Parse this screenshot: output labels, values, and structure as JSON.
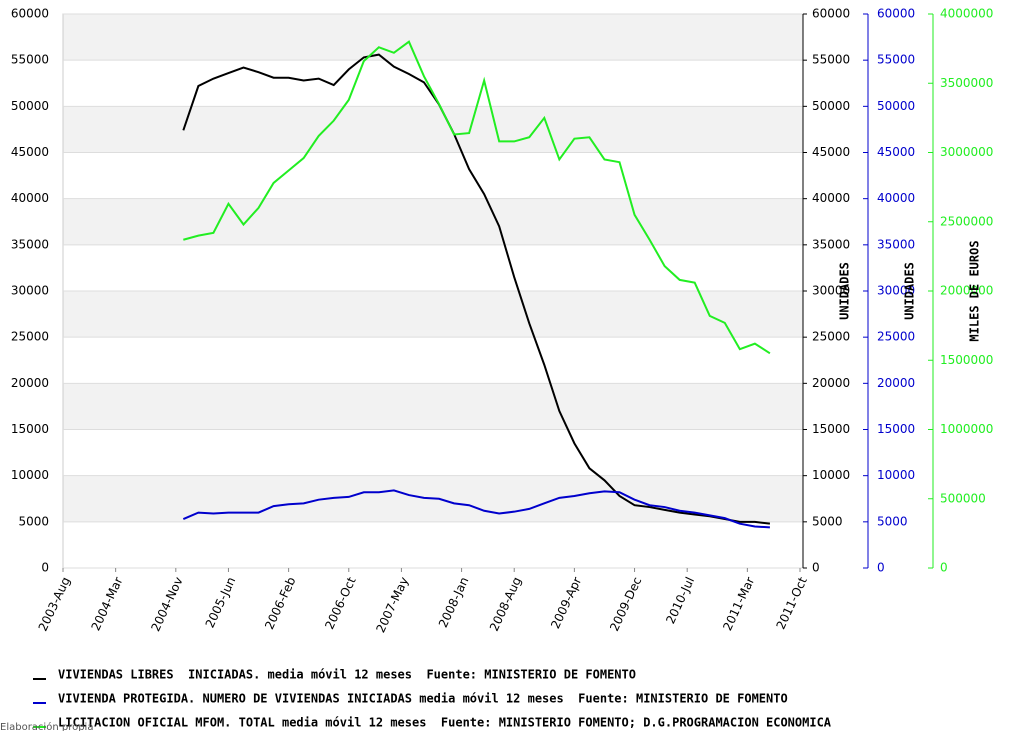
{
  "chart_data": {
    "type": "line",
    "x": [
      "2004-Dec",
      "2005-Feb",
      "2005-Apr",
      "2005-Jun",
      "2005-Aug",
      "2005-Oct",
      "2005-Dec",
      "2006-Feb",
      "2006-Apr",
      "2006-Jun",
      "2006-Aug",
      "2006-Oct",
      "2006-Dec",
      "2007-Feb",
      "2007-Apr",
      "2007-Jun",
      "2007-Aug",
      "2007-Oct",
      "2007-Dec",
      "2008-Feb",
      "2008-Apr",
      "2008-Jun",
      "2008-Aug",
      "2008-Oct",
      "2008-Dec",
      "2009-Feb",
      "2009-Apr",
      "2009-Jun",
      "2009-Aug",
      "2009-Oct",
      "2009-Dec",
      "2010-Feb",
      "2010-Apr",
      "2010-Jun",
      "2010-Aug",
      "2010-Oct",
      "2010-Dec",
      "2011-Feb",
      "2011-Apr",
      "2011-Jun"
    ],
    "xlim": [
      "2003-Aug",
      "2011-Oct"
    ],
    "xticks": [
      "2003-Aug",
      "2004-Mar",
      "2004-Nov",
      "2005-Jun",
      "2006-Feb",
      "2006-Oct",
      "2007-May",
      "2008-Jan",
      "2008-Aug",
      "2009-Apr",
      "2009-Dec",
      "2010-Jul",
      "2011-Mar",
      "2011-Oct"
    ],
    "ylim": [
      0,
      60000
    ],
    "yticks": [
      0,
      5000,
      10000,
      15000,
      20000,
      25000,
      30000,
      35000,
      40000,
      45000,
      50000,
      55000,
      60000
    ],
    "y_label": "UNIDADES",
    "y2lim": [
      0,
      60000
    ],
    "y2ticks": [
      0,
      5000,
      10000,
      15000,
      20000,
      25000,
      30000,
      35000,
      40000,
      45000,
      50000,
      55000,
      60000
    ],
    "y2_label": "UNIDADES",
    "y3lim": [
      0,
      4000000
    ],
    "y3ticks": [
      0,
      500000,
      1000000,
      1500000,
      2000000,
      2500000,
      3000000,
      3500000,
      4000000
    ],
    "y3_label": "MILES DE EUROS",
    "grid": true,
    "series": [
      {
        "name": "VIVIENDAS LIBRES  INICIADAS. media móvil 12 meses  Fuente: MINISTERIO DE FOMENTO",
        "color": "#000000",
        "axis": "y",
        "values": [
          47400,
          52200,
          53000,
          53600,
          54200,
          53700,
          53100,
          53100,
          52800,
          53000,
          52300,
          54000,
          55300,
          55600,
          54300,
          53500,
          52600,
          50200,
          47000,
          43200,
          40500,
          37000,
          31500,
          26500,
          22000,
          17000,
          13500,
          10800,
          9500,
          7800,
          6800,
          6600,
          6300,
          6000,
          5800,
          5600,
          5300,
          5000,
          5000,
          4800
        ]
      },
      {
        "name": "VIVIENDA PROTEGIDA. NUMERO DE VIVIENDAS INICIADAS media móvil 12 meses  Fuente: MINISTERIO DE FOMENTO",
        "color": "#0000cc",
        "axis": "y2",
        "values": [
          5300,
          6000,
          5900,
          6000,
          6000,
          6000,
          6700,
          6900,
          7000,
          7400,
          7600,
          7700,
          8200,
          8200,
          8400,
          7900,
          7600,
          7500,
          7000,
          6800,
          6200,
          5900,
          6100,
          6400,
          7000,
          7600,
          7800,
          8100,
          8300,
          8200,
          7400,
          6800,
          6600,
          6200,
          6000,
          5700,
          5400,
          4800,
          4500,
          4400
        ]
      },
      {
        "name": "LICITACION OFICIAL MFOM. TOTAL media móvil 12 meses  Fuente: MINISTERIO FOMENTO; D.G.PROGRAMACION ECONOMICA",
        "color": "#22ee22",
        "axis": "y3",
        "values": [
          2370000,
          2400000,
          2420000,
          2630000,
          2480000,
          2600000,
          2780000,
          2870000,
          2960000,
          3120000,
          3230000,
          3380000,
          3660000,
          3760000,
          3720000,
          3800000,
          3550000,
          3350000,
          3130000,
          3140000,
          3520000,
          3080000,
          3080000,
          3110000,
          3250000,
          2950000,
          3100000,
          3110000,
          2950000,
          2930000,
          2550000,
          2370000,
          2180000,
          2080000,
          2060000,
          1820000,
          1770000,
          1580000,
          1620000,
          1550000
        ]
      }
    ],
    "source": "Elaboración propia"
  }
}
